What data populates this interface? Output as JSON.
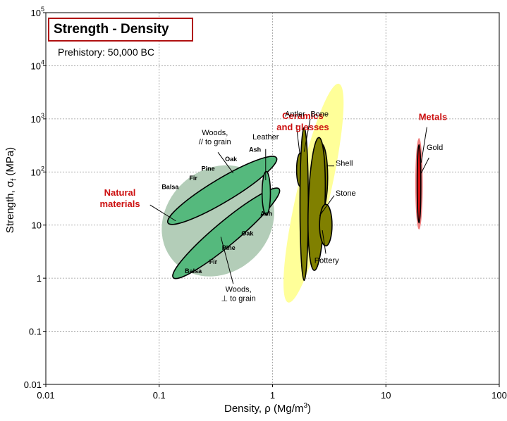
{
  "chart_data": {
    "type": "scatter",
    "title": "Strength - Density",
    "subtitle": "Prehistory: 50,000 BC",
    "xlabel_prefix": "Density, ρ  (Mg/m",
    "xlabel_sup": "3",
    "xlabel_suffix": ")",
    "ylabel_prefix": "Strength, σ",
    "ylabel_sub": "f",
    "ylabel_suffix": " (MPa)",
    "x_scale": "log",
    "y_scale": "log",
    "xlim": [
      0.01,
      100
    ],
    "ylim": [
      0.01,
      100000
    ],
    "grid": true,
    "x_ticks": [
      {
        "value": 0.01,
        "label": "0.01"
      },
      {
        "value": 0.1,
        "label": "0.1"
      },
      {
        "value": 1,
        "label": "1"
      },
      {
        "value": 10,
        "label": "10"
      },
      {
        "value": 100,
        "label": "100"
      }
    ],
    "y_ticks": [
      {
        "value": 0.01,
        "base": "0.01",
        "exp": ""
      },
      {
        "value": 0.1,
        "base": "0.1",
        "exp": ""
      },
      {
        "value": 1,
        "base": "1",
        "exp": ""
      },
      {
        "value": 10,
        "base": "10",
        "exp": ""
      },
      {
        "value": 100,
        "base": "10",
        "exp": "2"
      },
      {
        "value": 1000,
        "base": "10",
        "exp": "3"
      },
      {
        "value": 10000,
        "base": "10",
        "exp": "4"
      },
      {
        "value": 100000,
        "base": "10",
        "exp": "5"
      }
    ],
    "colors": {
      "natural_envelope": "#b3cdb8",
      "wood": "#55b97d",
      "ceramic_envelope": "#ffff99",
      "ceramic": "#808000",
      "metal_envelope": "#f08080",
      "metal": "#e01010"
    },
    "envelopes": [
      {
        "name": "Natural materials",
        "color": "natural_envelope",
        "cx": 0.33,
        "cy": 12,
        "rx_dec": 0.72,
        "ry_dec": 0.62,
        "angle": 43
      },
      {
        "name": "Ceramics and glasses",
        "color": "ceramic_envelope",
        "cx": 2.3,
        "cy": 40,
        "rx_dec": 1.35,
        "ry_dec": 0.2,
        "angle": 77
      },
      {
        "name": "Metals",
        "color": "metal_envelope",
        "cx": 19.6,
        "cy": 60,
        "rx_dec": 0.55,
        "ry_dec": 0.045,
        "angle": 90
      }
    ],
    "materials": [
      {
        "name": "Woods, // to grain",
        "color": "wood",
        "cx": 0.36,
        "cy": 45,
        "rx_dec": 0.76,
        "ry_dec": 0.14,
        "angle": 31
      },
      {
        "name": "Woods, ⊥ to grain",
        "color": "wood",
        "cx": 0.39,
        "cy": 7,
        "rx_dec": 0.83,
        "ry_dec": 0.14,
        "angle": 40
      },
      {
        "name": "Leather",
        "color": "wood",
        "cx": 0.88,
        "cy": 40,
        "rx_dec": 0.26,
        "ry_dec": 0.05,
        "angle": 90
      },
      {
        "name": "Antler",
        "color": "ceramic",
        "cx": 1.76,
        "cy": 110,
        "rx_dec": 0.2,
        "ry_dec": 0.045,
        "angle": 90
      },
      {
        "name": "Bone",
        "color": "ceramic",
        "cx": 1.9,
        "cy": 25,
        "rx_dec": 0.92,
        "ry_dec": 0.05,
        "angle": 90
      },
      {
        "name": "Shell",
        "color": "ceramic",
        "cx": 2.7,
        "cy": 80,
        "rx_dec": 0.4,
        "ry_dec": 0.075,
        "angle": 90
      },
      {
        "name": "Stone",
        "color": "ceramic",
        "cx": 2.45,
        "cy": 25,
        "rx_dec": 0.8,
        "ry_dec": 0.1,
        "angle": 88
      },
      {
        "name": "Pottery",
        "color": "ceramic",
        "cx": 2.95,
        "cy": 10,
        "rx_dec": 0.25,
        "ry_dec": 0.075,
        "angle": 90
      },
      {
        "name": "Gold",
        "color": "metal",
        "cx": 19.6,
        "cy": 60,
        "rx_dec": 0.47,
        "ry_dec": 0.022,
        "angle": 90
      }
    ],
    "annotations": [
      {
        "name": "Natural materials",
        "lines": [
          "Natural",
          "materials"
        ],
        "style": "group",
        "x": 0.045,
        "y": 36,
        "anchor": "middle",
        "leader": [
          [
            0.083,
            24
          ],
          [
            0.14,
            12
          ]
        ]
      },
      {
        "name": "Ceramics and glasses",
        "lines": [
          "Ceramics",
          "and glasses"
        ],
        "style": "group",
        "x": 1.85,
        "y": 1000,
        "anchor": "middle",
        "leader": null
      },
      {
        "name": "Metals",
        "lines": [
          "Metals"
        ],
        "style": "group",
        "x": 26,
        "y": 950,
        "anchor": "middle",
        "leader": [
          [
            23,
            700
          ],
          [
            20.5,
            150
          ]
        ]
      },
      {
        "name": "Woods, // to grain",
        "lines": [
          "Woods,",
          "// to grain"
        ],
        "style": "label",
        "x": 0.31,
        "y": 490,
        "anchor": "middle",
        "leader": [
          [
            0.33,
            235
          ],
          [
            0.45,
            95
          ]
        ]
      },
      {
        "name": "Woods, ⊥ to grain",
        "lines": [
          "Woods,",
          "⊥ to grain"
        ],
        "style": "label",
        "x": 0.5,
        "y": 0.55,
        "anchor": "middle",
        "leader": [
          [
            0.45,
            0.78
          ],
          [
            0.35,
            6
          ]
        ]
      },
      {
        "name": "Leather",
        "lines": [
          "Leather"
        ],
        "style": "label",
        "x": 0.87,
        "y": 410,
        "anchor": "middle",
        "leader": [
          [
            0.87,
            270
          ],
          [
            0.87,
            70
          ]
        ]
      },
      {
        "name": "Antler",
        "lines": [
          "Antler"
        ],
        "style": "label",
        "x": 1.58,
        "y": 1100,
        "anchor": "middle",
        "leader": [
          [
            1.62,
            760
          ],
          [
            1.74,
            220
          ]
        ]
      },
      {
        "name": "Bone",
        "lines": [
          "Bone"
        ],
        "style": "label",
        "x": 2.6,
        "y": 1100,
        "anchor": "middle",
        "leader": [
          [
            2.15,
            1000
          ],
          [
            1.9,
            240
          ]
        ]
      },
      {
        "name": "Shell",
        "lines": [
          "Shell"
        ],
        "style": "label",
        "x": 3.6,
        "y": 130,
        "anchor": "start",
        "leader": [
          [
            3.5,
            130
          ],
          [
            3.0,
            130
          ]
        ]
      },
      {
        "name": "Stone",
        "lines": [
          "Stone"
        ],
        "style": "label",
        "x": 3.6,
        "y": 36,
        "anchor": "start",
        "leader": [
          [
            3.5,
            36
          ],
          [
            2.6,
            15
          ]
        ]
      },
      {
        "name": "Pottery",
        "lines": [
          "Pottery"
        ],
        "style": "label",
        "x": 3.0,
        "y": 1.95,
        "anchor": "middle",
        "leader": [
          [
            2.95,
            2.9
          ],
          [
            2.75,
            8
          ]
        ]
      },
      {
        "name": "Gold",
        "lines": [
          "Gold"
        ],
        "style": "label",
        "x": 27,
        "y": 260,
        "anchor": "middle",
        "leader": [
          [
            24,
            185
          ],
          [
            20.2,
            90
          ]
        ]
      }
    ],
    "species_labels": [
      {
        "text": "Ash",
        "x": 0.7,
        "y": 240
      },
      {
        "text": "Oak",
        "x": 0.43,
        "y": 160
      },
      {
        "text": "Pine",
        "x": 0.27,
        "y": 106
      },
      {
        "text": "Fir",
        "x": 0.2,
        "y": 70
      },
      {
        "text": "Balsa",
        "x": 0.125,
        "y": 48
      },
      {
        "text": "Ash",
        "x": 0.88,
        "y": 15
      },
      {
        "text": "Oak",
        "x": 0.6,
        "y": 6.4
      },
      {
        "text": "Pine",
        "x": 0.41,
        "y": 3.4
      },
      {
        "text": "Fir",
        "x": 0.3,
        "y": 1.85
      },
      {
        "text": "Balsa",
        "x": 0.2,
        "y": 1.24
      }
    ]
  }
}
